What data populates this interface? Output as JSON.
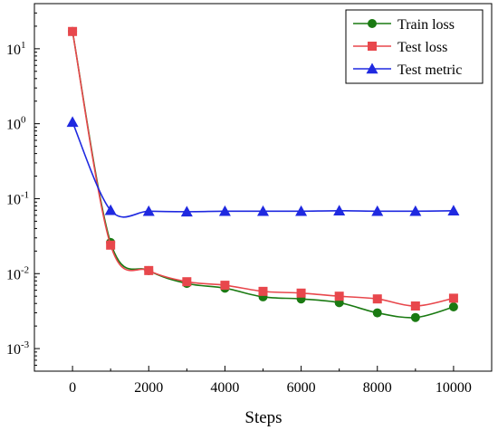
{
  "chart_data": {
    "type": "line",
    "title": "",
    "xlabel": "Steps",
    "ylabel": "",
    "xlim": [
      -1000,
      11000
    ],
    "ylim": [
      0.0005,
      40
    ],
    "yscale": "log",
    "grid": false,
    "legend_position": "top-right",
    "x_ticks": [
      0,
      2000,
      4000,
      6000,
      8000,
      10000
    ],
    "y_ticks": [
      {
        "value": 0.001,
        "base": "10",
        "exp": "-3"
      },
      {
        "value": 0.01,
        "base": "10",
        "exp": "-2"
      },
      {
        "value": 0.1,
        "base": "10",
        "exp": "-1"
      },
      {
        "value": 1,
        "base": "10",
        "exp": "0"
      },
      {
        "value": 10,
        "base": "10",
        "exp": "1"
      }
    ],
    "x": [
      0,
      1000,
      2000,
      3000,
      4000,
      5000,
      6000,
      7000,
      8000,
      9000,
      10000
    ],
    "series": [
      {
        "name": "Train loss",
        "color": "#1a7a12",
        "marker": "circle",
        "values": [
          17.0,
          0.026,
          0.011,
          0.0074,
          0.0064,
          0.0049,
          0.0046,
          0.0041,
          0.003,
          0.0026,
          0.0036
        ]
      },
      {
        "name": "Test loss",
        "color": "#e8474c",
        "marker": "square",
        "values": [
          17.0,
          0.024,
          0.011,
          0.0078,
          0.007,
          0.0058,
          0.0055,
          0.005,
          0.0046,
          0.0037,
          0.0047
        ]
      },
      {
        "name": "Test metric",
        "color": "#1f29e0",
        "marker": "triangle",
        "values": [
          1.05,
          0.07,
          0.068,
          0.067,
          0.068,
          0.068,
          0.068,
          0.069,
          0.068,
          0.068,
          0.069
        ]
      }
    ]
  }
}
